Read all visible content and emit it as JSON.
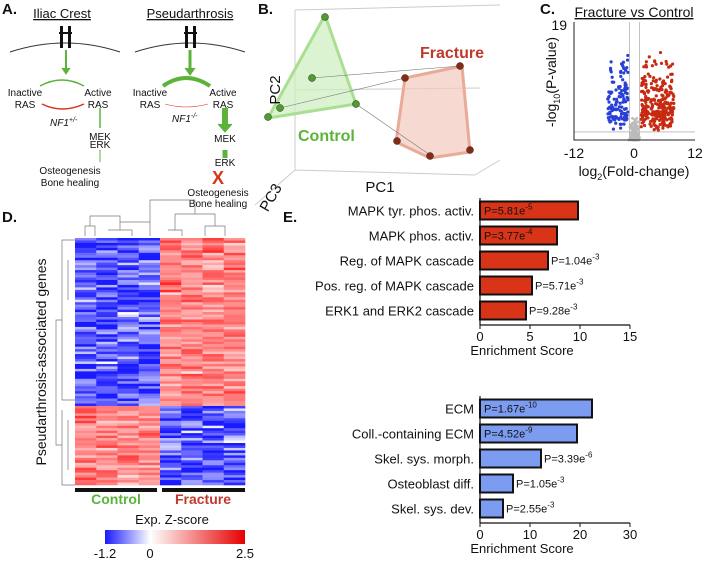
{
  "panels": {
    "A": {
      "label": "A.",
      "left_title": "Iliac Crest",
      "right_title": "Pseudarthrosis",
      "inactive": "Inactive",
      "ras": "RAS",
      "active": "Active",
      "nf1": "NF1",
      "nf1_left_sup": "+/-",
      "nf1_right_sup": "-/-",
      "mek": "MEK",
      "erk": "ERK",
      "outcome1": "Osteogenesis",
      "outcome2": "Bone healing",
      "block": "X"
    },
    "B": {
      "label": "B.",
      "pc1": "PC1",
      "pc2": "PC2",
      "pc3": "PC3",
      "group1": "Control",
      "group2": "Fracture"
    },
    "C": {
      "label": "C.",
      "title": "Fracture vs Control",
      "y_label_base": "-log",
      "y_label_sub": "10",
      "y_label_rest": "(P-value)",
      "x_label_base": "log",
      "x_label_sub": "2",
      "x_label_rest": "(Fold-change)",
      "x_ticks": [
        "-12",
        "0",
        "12"
      ],
      "y_top": "19"
    },
    "D": {
      "label": "D.",
      "y_label": "Pseudarthrosis-associated genes",
      "group1": "Control",
      "group2": "Fracture",
      "colorbar_title": "Exp. Z-score",
      "colorbar_ticks": [
        "-1.2",
        "0",
        "2.5"
      ]
    },
    "E": {
      "label": "E."
    }
  },
  "chart_data": [
    {
      "type": "bar",
      "orientation": "horizontal",
      "color": "#d93318",
      "categories": [
        "MAPK tyr. phos. activ.",
        "MAPK phos. activ.",
        "Reg. of MAPK cascade",
        "Pos. reg. of MAPK cascade",
        "ERK1 and ERK2 cascade"
      ],
      "values": [
        9.8,
        7.7,
        6.8,
        5.2,
        4.6
      ],
      "annotations": [
        {
          "text": "P=5.81e",
          "exp": "-5"
        },
        {
          "text": "P=3.77e",
          "exp": "-4"
        },
        {
          "text": "P=1.04e",
          "exp": "-3"
        },
        {
          "text": "P=5.71e",
          "exp": "-3"
        },
        {
          "text": "P=9.28e",
          "exp": "-3"
        }
      ],
      "xlim": [
        0,
        15
      ],
      "xticks": [
        0,
        5,
        10,
        15
      ],
      "xlabel": "Enrichment Score"
    },
    {
      "type": "bar",
      "orientation": "horizontal",
      "color": "#7b9cf0",
      "categories": [
        "ECM",
        "Coll.-containing ECM",
        "Skel. sys. morph.",
        "Osteoblast diff.",
        "Skel. sys. dev."
      ],
      "values": [
        22.4,
        19.4,
        12.2,
        6.6,
        4.6
      ],
      "annotations": [
        {
          "text": "P=1.67e",
          "exp": "-10"
        },
        {
          "text": "P=4.52e",
          "exp": "-9"
        },
        {
          "text": "P=3.39e",
          "exp": "-6"
        },
        {
          "text": "P=1.05e",
          "exp": "-3"
        },
        {
          "text": "P=2.55e",
          "exp": "-3"
        }
      ],
      "xlim": [
        0,
        30
      ],
      "xticks": [
        0,
        10,
        20,
        30
      ],
      "xlabel": "Enrichment Score"
    }
  ]
}
